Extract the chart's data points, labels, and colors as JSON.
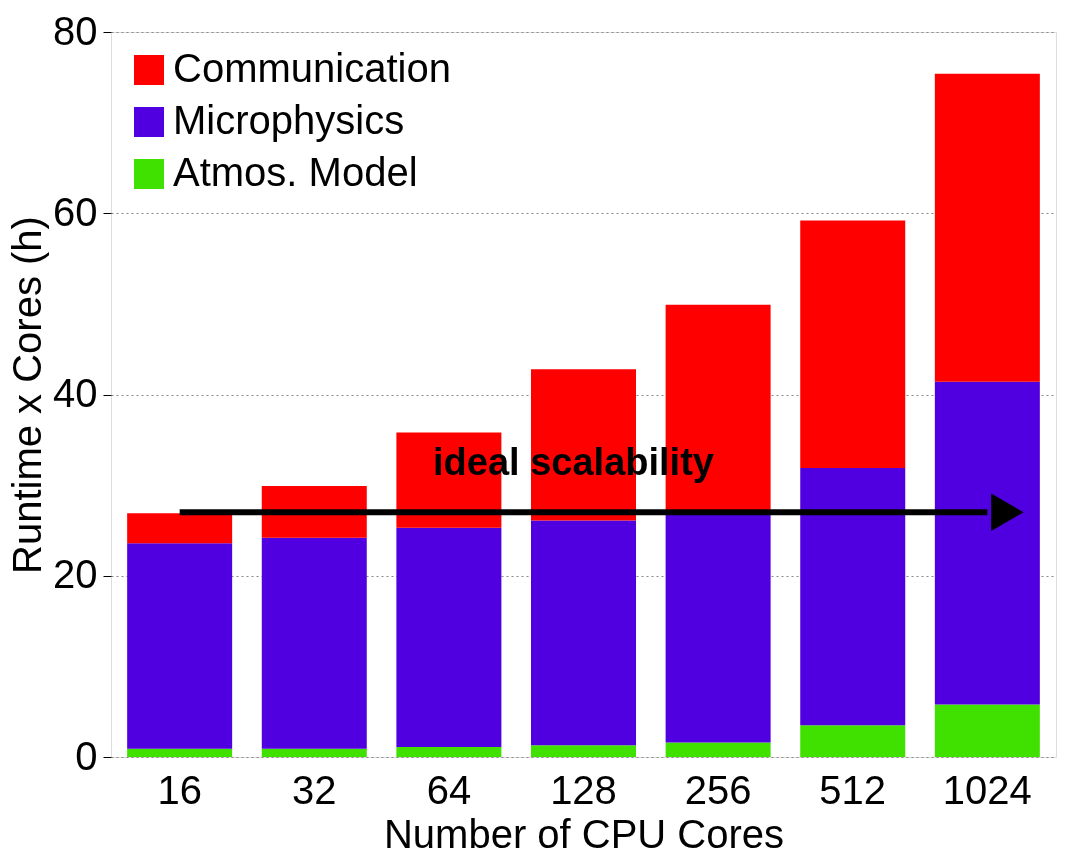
{
  "chart_data": {
    "type": "bar",
    "stacked": true,
    "xlabel": "Number of CPU Cores",
    "ylabel": "Runtime x Cores (h)",
    "categories": [
      "16",
      "32",
      "64",
      "128",
      "256",
      "512",
      "1024"
    ],
    "series": [
      {
        "name": "Atmos. Model",
        "color": "#40e000",
        "values": [
          0.9,
          0.9,
          1.1,
          1.3,
          1.6,
          3.5,
          5.8
        ]
      },
      {
        "name": "Microphysics",
        "color": "#5000e0",
        "values": [
          22.7,
          23.3,
          24.2,
          24.8,
          25.4,
          28.4,
          35.6
        ]
      },
      {
        "name": "Communication",
        "color": "#ff0000",
        "values": [
          3.3,
          5.7,
          10.5,
          16.7,
          22.9,
          27.3,
          34.0
        ]
      }
    ],
    "ylim": [
      0,
      80
    ],
    "yticks": [
      0,
      20,
      40,
      60,
      80
    ],
    "grid": "y",
    "legend": "top left",
    "ref_lines": [
      {
        "axis": "y",
        "value": 27,
        "label": "ideal scalability",
        "color": "#000000"
      }
    ]
  }
}
